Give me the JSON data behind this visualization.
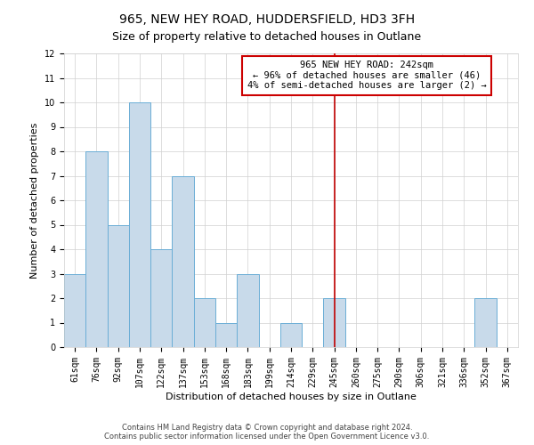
{
  "title": "965, NEW HEY ROAD, HUDDERSFIELD, HD3 3FH",
  "subtitle": "Size of property relative to detached houses in Outlane",
  "xlabel": "Distribution of detached houses by size in Outlane",
  "ylabel": "Number of detached properties",
  "categories": [
    "61sqm",
    "76sqm",
    "92sqm",
    "107sqm",
    "122sqm",
    "137sqm",
    "153sqm",
    "168sqm",
    "183sqm",
    "199sqm",
    "214sqm",
    "229sqm",
    "245sqm",
    "260sqm",
    "275sqm",
    "290sqm",
    "306sqm",
    "321sqm",
    "336sqm",
    "352sqm",
    "367sqm"
  ],
  "values": [
    3,
    8,
    5,
    10,
    4,
    7,
    2,
    1,
    3,
    0,
    1,
    0,
    2,
    0,
    0,
    0,
    0,
    0,
    0,
    2,
    0
  ],
  "bar_color": "#c8daea",
  "bar_edgecolor": "#6baed6",
  "vline_x": 12,
  "vline_color": "#c00000",
  "annotation_text": "965 NEW HEY ROAD: 242sqm\n← 96% of detached houses are smaller (46)\n4% of semi-detached houses are larger (2) →",
  "annotation_box_edgecolor": "#cc0000",
  "ylim": [
    0,
    12
  ],
  "yticks": [
    0,
    1,
    2,
    3,
    4,
    5,
    6,
    7,
    8,
    9,
    10,
    11,
    12
  ],
  "footer_line1": "Contains HM Land Registry data © Crown copyright and database right 2024.",
  "footer_line2": "Contains public sector information licensed under the Open Government Licence v3.0.",
  "bg_color": "#ffffff",
  "plot_bg_color": "#ffffff",
  "grid_color": "#d0d0d0",
  "title_fontsize": 10,
  "subtitle_fontsize": 9,
  "axis_label_fontsize": 8,
  "tick_fontsize": 7,
  "annotation_fontsize": 7.5,
  "footer_fontsize": 6
}
